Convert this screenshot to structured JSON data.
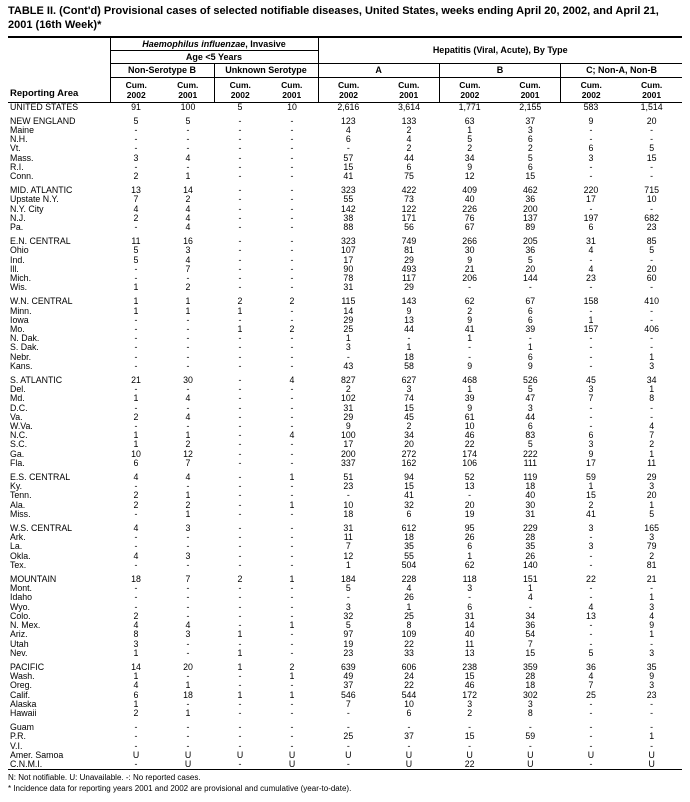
{
  "title": "TABLE II. (Cont'd) Provisional cases of selected notifiable diseases, United States, weeks ending April 20, 2002, and April 21, 2001 (16th Week)*",
  "header": {
    "reporting_area": "Reporting Area",
    "hib_group_italic": "Haemophilus influenzae",
    "hib_group_rest": ", Invasive",
    "age_group": "Age <5 Years",
    "hepatitis_group": "Hepatitis (Viral, Acute), By Type",
    "subgroups": [
      "Non-Serotype B",
      "Unknown Serotype",
      "A",
      "B",
      "C; Non-A, Non-B"
    ],
    "cum_label": "Cum.",
    "years": [
      "2002",
      "2001",
      "2002",
      "2001",
      "2002",
      "2001",
      "2002",
      "2001",
      "2002",
      "2001"
    ]
  },
  "table": {
    "rows": [
      {
        "area": "UNITED STATES",
        "values": [
          "91",
          "100",
          "5",
          "10",
          "2,616",
          "3,614",
          "1,771",
          "2,155",
          "583",
          "1,514"
        ]
      },
      {
        "area": "NEW ENGLAND",
        "gap": true,
        "values": [
          "5",
          "5",
          "-",
          "-",
          "123",
          "133",
          "63",
          "37",
          "9",
          "20"
        ]
      },
      {
        "area": "Maine",
        "values": [
          "-",
          "-",
          "-",
          "-",
          "4",
          "2",
          "1",
          "3",
          "-",
          "-"
        ]
      },
      {
        "area": "N.H.",
        "values": [
          "-",
          "-",
          "-",
          "-",
          "6",
          "4",
          "5",
          "6",
          "-",
          "-"
        ]
      },
      {
        "area": "Vt.",
        "values": [
          "-",
          "-",
          "-",
          "-",
          "-",
          "2",
          "2",
          "2",
          "6",
          "5"
        ]
      },
      {
        "area": "Mass.",
        "values": [
          "3",
          "4",
          "-",
          "-",
          "57",
          "44",
          "34",
          "5",
          "3",
          "15"
        ]
      },
      {
        "area": "R.I.",
        "values": [
          "-",
          "-",
          "-",
          "-",
          "15",
          "6",
          "9",
          "6",
          "-",
          "-"
        ]
      },
      {
        "area": "Conn.",
        "values": [
          "2",
          "1",
          "-",
          "-",
          "41",
          "75",
          "12",
          "15",
          "-",
          "-"
        ]
      },
      {
        "area": "MID. ATLANTIC",
        "gap": true,
        "values": [
          "13",
          "14",
          "-",
          "-",
          "323",
          "422",
          "409",
          "462",
          "220",
          "715"
        ]
      },
      {
        "area": "Upstate N.Y.",
        "values": [
          "7",
          "2",
          "-",
          "-",
          "55",
          "73",
          "40",
          "36",
          "17",
          "10"
        ]
      },
      {
        "area": "N.Y. City",
        "values": [
          "4",
          "4",
          "-",
          "-",
          "142",
          "122",
          "226",
          "200",
          "-",
          "-"
        ]
      },
      {
        "area": "N.J.",
        "values": [
          "2",
          "4",
          "-",
          "-",
          "38",
          "171",
          "76",
          "137",
          "197",
          "682"
        ]
      },
      {
        "area": "Pa.",
        "values": [
          "-",
          "4",
          "-",
          "-",
          "88",
          "56",
          "67",
          "89",
          "6",
          "23"
        ]
      },
      {
        "area": "E.N. CENTRAL",
        "gap": true,
        "values": [
          "11",
          "16",
          "-",
          "-",
          "323",
          "749",
          "266",
          "205",
          "31",
          "85"
        ]
      },
      {
        "area": "Ohio",
        "values": [
          "5",
          "3",
          "-",
          "-",
          "107",
          "81",
          "30",
          "36",
          "4",
          "5"
        ]
      },
      {
        "area": "Ind.",
        "values": [
          "5",
          "4",
          "-",
          "-",
          "17",
          "29",
          "9",
          "5",
          "-",
          "-"
        ]
      },
      {
        "area": "Ill.",
        "values": [
          "-",
          "7",
          "-",
          "-",
          "90",
          "493",
          "21",
          "20",
          "4",
          "20"
        ]
      },
      {
        "area": "Mich.",
        "values": [
          "-",
          "-",
          "-",
          "-",
          "78",
          "117",
          "206",
          "144",
          "23",
          "60"
        ]
      },
      {
        "area": "Wis.",
        "values": [
          "1",
          "2",
          "-",
          "-",
          "31",
          "29",
          "-",
          "-",
          "-",
          "-"
        ]
      },
      {
        "area": "W.N. CENTRAL",
        "gap": true,
        "values": [
          "1",
          "1",
          "2",
          "2",
          "115",
          "143",
          "62",
          "67",
          "158",
          "410"
        ]
      },
      {
        "area": "Minn.",
        "values": [
          "1",
          "1",
          "1",
          "-",
          "14",
          "9",
          "2",
          "6",
          "-",
          "-"
        ]
      },
      {
        "area": "Iowa",
        "values": [
          "-",
          "-",
          "-",
          "-",
          "29",
          "13",
          "9",
          "6",
          "1",
          "-"
        ]
      },
      {
        "area": "Mo.",
        "values": [
          "-",
          "-",
          "1",
          "2",
          "25",
          "44",
          "41",
          "39",
          "157",
          "406"
        ]
      },
      {
        "area": "N. Dak.",
        "values": [
          "-",
          "-",
          "-",
          "-",
          "1",
          "-",
          "1",
          "-",
          "-",
          "-"
        ]
      },
      {
        "area": "S. Dak.",
        "values": [
          "-",
          "-",
          "-",
          "-",
          "3",
          "1",
          "-",
          "1",
          "-",
          "-"
        ]
      },
      {
        "area": "Nebr.",
        "values": [
          "-",
          "-",
          "-",
          "-",
          "-",
          "18",
          "-",
          "6",
          "-",
          "1"
        ]
      },
      {
        "area": "Kans.",
        "values": [
          "-",
          "-",
          "-",
          "-",
          "43",
          "58",
          "9",
          "9",
          "-",
          "3"
        ]
      },
      {
        "area": "S. ATLANTIC",
        "gap": true,
        "values": [
          "21",
          "30",
          "-",
          "4",
          "827",
          "627",
          "468",
          "526",
          "45",
          "34"
        ]
      },
      {
        "area": "Del.",
        "values": [
          "-",
          "-",
          "-",
          "-",
          "2",
          "3",
          "1",
          "5",
          "3",
          "1"
        ]
      },
      {
        "area": "Md.",
        "values": [
          "1",
          "4",
          "-",
          "-",
          "102",
          "74",
          "39",
          "47",
          "7",
          "8"
        ]
      },
      {
        "area": "D.C.",
        "values": [
          "-",
          "-",
          "-",
          "-",
          "31",
          "15",
          "9",
          "3",
          "-",
          "-"
        ]
      },
      {
        "area": "Va.",
        "values": [
          "2",
          "4",
          "-",
          "-",
          "29",
          "45",
          "61",
          "44",
          "-",
          "-"
        ]
      },
      {
        "area": "W.Va.",
        "values": [
          "-",
          "-",
          "-",
          "-",
          "9",
          "2",
          "10",
          "6",
          "-",
          "4"
        ]
      },
      {
        "area": "N.C.",
        "values": [
          "1",
          "1",
          "-",
          "4",
          "100",
          "34",
          "46",
          "83",
          "6",
          "7"
        ]
      },
      {
        "area": "S.C.",
        "values": [
          "1",
          "2",
          "-",
          "-",
          "17",
          "20",
          "22",
          "5",
          "3",
          "2"
        ]
      },
      {
        "area": "Ga.",
        "values": [
          "10",
          "12",
          "-",
          "-",
          "200",
          "272",
          "174",
          "222",
          "9",
          "1"
        ]
      },
      {
        "area": "Fla.",
        "values": [
          "6",
          "7",
          "-",
          "-",
          "337",
          "162",
          "106",
          "111",
          "17",
          "11"
        ]
      },
      {
        "area": "E.S. CENTRAL",
        "gap": true,
        "values": [
          "4",
          "4",
          "-",
          "1",
          "51",
          "94",
          "52",
          "119",
          "59",
          "29"
        ]
      },
      {
        "area": "Ky.",
        "values": [
          "-",
          "-",
          "-",
          "-",
          "23",
          "15",
          "13",
          "18",
          "1",
          "3"
        ]
      },
      {
        "area": "Tenn.",
        "values": [
          "2",
          "1",
          "-",
          "-",
          "-",
          "41",
          "-",
          "40",
          "15",
          "20"
        ]
      },
      {
        "area": "Ala.",
        "values": [
          "2",
          "2",
          "-",
          "1",
          "10",
          "32",
          "20",
          "30",
          "2",
          "1"
        ]
      },
      {
        "area": "Miss.",
        "values": [
          "-",
          "1",
          "-",
          "-",
          "18",
          "6",
          "19",
          "31",
          "41",
          "5"
        ]
      },
      {
        "area": "W.S. CENTRAL",
        "gap": true,
        "values": [
          "4",
          "3",
          "-",
          "-",
          "31",
          "612",
          "95",
          "229",
          "3",
          "165"
        ]
      },
      {
        "area": "Ark.",
        "values": [
          "-",
          "-",
          "-",
          "-",
          "11",
          "18",
          "26",
          "28",
          "-",
          "3"
        ]
      },
      {
        "area": "La.",
        "values": [
          "-",
          "-",
          "-",
          "-",
          "7",
          "35",
          "6",
          "35",
          "3",
          "79"
        ]
      },
      {
        "area": "Okla.",
        "values": [
          "4",
          "3",
          "-",
          "-",
          "12",
          "55",
          "1",
          "26",
          "-",
          "2"
        ]
      },
      {
        "area": "Tex.",
        "values": [
          "-",
          "-",
          "-",
          "-",
          "1",
          "504",
          "62",
          "140",
          "-",
          "81"
        ]
      },
      {
        "area": "MOUNTAIN",
        "gap": true,
        "values": [
          "18",
          "7",
          "2",
          "1",
          "184",
          "228",
          "118",
          "151",
          "22",
          "21"
        ]
      },
      {
        "area": "Mont.",
        "values": [
          "-",
          "-",
          "-",
          "-",
          "5",
          "4",
          "3",
          "1",
          "-",
          "-"
        ]
      },
      {
        "area": "Idaho",
        "values": [
          "-",
          "-",
          "-",
          "-",
          "-",
          "26",
          "-",
          "4",
          "-",
          "1"
        ]
      },
      {
        "area": "Wyo.",
        "values": [
          "-",
          "-",
          "-",
          "-",
          "3",
          "1",
          "6",
          "-",
          "4",
          "3"
        ]
      },
      {
        "area": "Colo.",
        "values": [
          "2",
          "-",
          "-",
          "-",
          "32",
          "25",
          "31",
          "34",
          "13",
          "4"
        ]
      },
      {
        "area": "N. Mex.",
        "values": [
          "4",
          "4",
          "-",
          "1",
          "5",
          "8",
          "14",
          "36",
          "-",
          "9"
        ]
      },
      {
        "area": "Ariz.",
        "values": [
          "8",
          "3",
          "1",
          "-",
          "97",
          "109",
          "40",
          "54",
          "-",
          "1"
        ]
      },
      {
        "area": "Utah",
        "values": [
          "3",
          "-",
          "-",
          "-",
          "19",
          "22",
          "11",
          "7",
          "-",
          "-"
        ]
      },
      {
        "area": "Nev.",
        "values": [
          "1",
          "-",
          "1",
          "-",
          "23",
          "33",
          "13",
          "15",
          "5",
          "3"
        ]
      },
      {
        "area": "PACIFIC",
        "gap": true,
        "values": [
          "14",
          "20",
          "1",
          "2",
          "639",
          "606",
          "238",
          "359",
          "36",
          "35"
        ]
      },
      {
        "area": "Wash.",
        "values": [
          "1",
          "-",
          "-",
          "1",
          "49",
          "24",
          "15",
          "28",
          "4",
          "9"
        ]
      },
      {
        "area": "Oreg.",
        "values": [
          "4",
          "1",
          "-",
          "-",
          "37",
          "22",
          "46",
          "18",
          "7",
          "3"
        ]
      },
      {
        "area": "Calif.",
        "values": [
          "6",
          "18",
          "1",
          "1",
          "546",
          "544",
          "172",
          "302",
          "25",
          "23"
        ]
      },
      {
        "area": "Alaska",
        "values": [
          "1",
          "-",
          "-",
          "-",
          "7",
          "10",
          "3",
          "3",
          "-",
          "-"
        ]
      },
      {
        "area": "Hawaii",
        "values": [
          "2",
          "1",
          "-",
          "-",
          "-",
          "6",
          "2",
          "8",
          "-",
          "-"
        ]
      },
      {
        "area": "Guam",
        "gap": true,
        "values": [
          "-",
          "-",
          "-",
          "-",
          "-",
          "-",
          "-",
          "-",
          "-",
          "-"
        ]
      },
      {
        "area": "P.R.",
        "values": [
          "-",
          "-",
          "-",
          "-",
          "25",
          "37",
          "15",
          "59",
          "-",
          "1"
        ]
      },
      {
        "area": "V.I.",
        "values": [
          "-",
          "-",
          "-",
          "-",
          "-",
          "-",
          "-",
          "-",
          "-",
          "-"
        ]
      },
      {
        "area": "Amer. Samoa",
        "values": [
          "U",
          "U",
          "U",
          "U",
          "U",
          "U",
          "U",
          "U",
          "U",
          "U"
        ]
      },
      {
        "area": "C.N.M.I.",
        "values": [
          "-",
          "U",
          "-",
          "U",
          "-",
          "U",
          "22",
          "U",
          "-",
          "U"
        ]
      }
    ]
  },
  "footnotes": [
    "N: Not notifiable. U: Unavailable. -: No reported cases.",
    "* Incidence data for reporting years 2001 and 2002 are provisional and cumulative (year-to-date)."
  ]
}
